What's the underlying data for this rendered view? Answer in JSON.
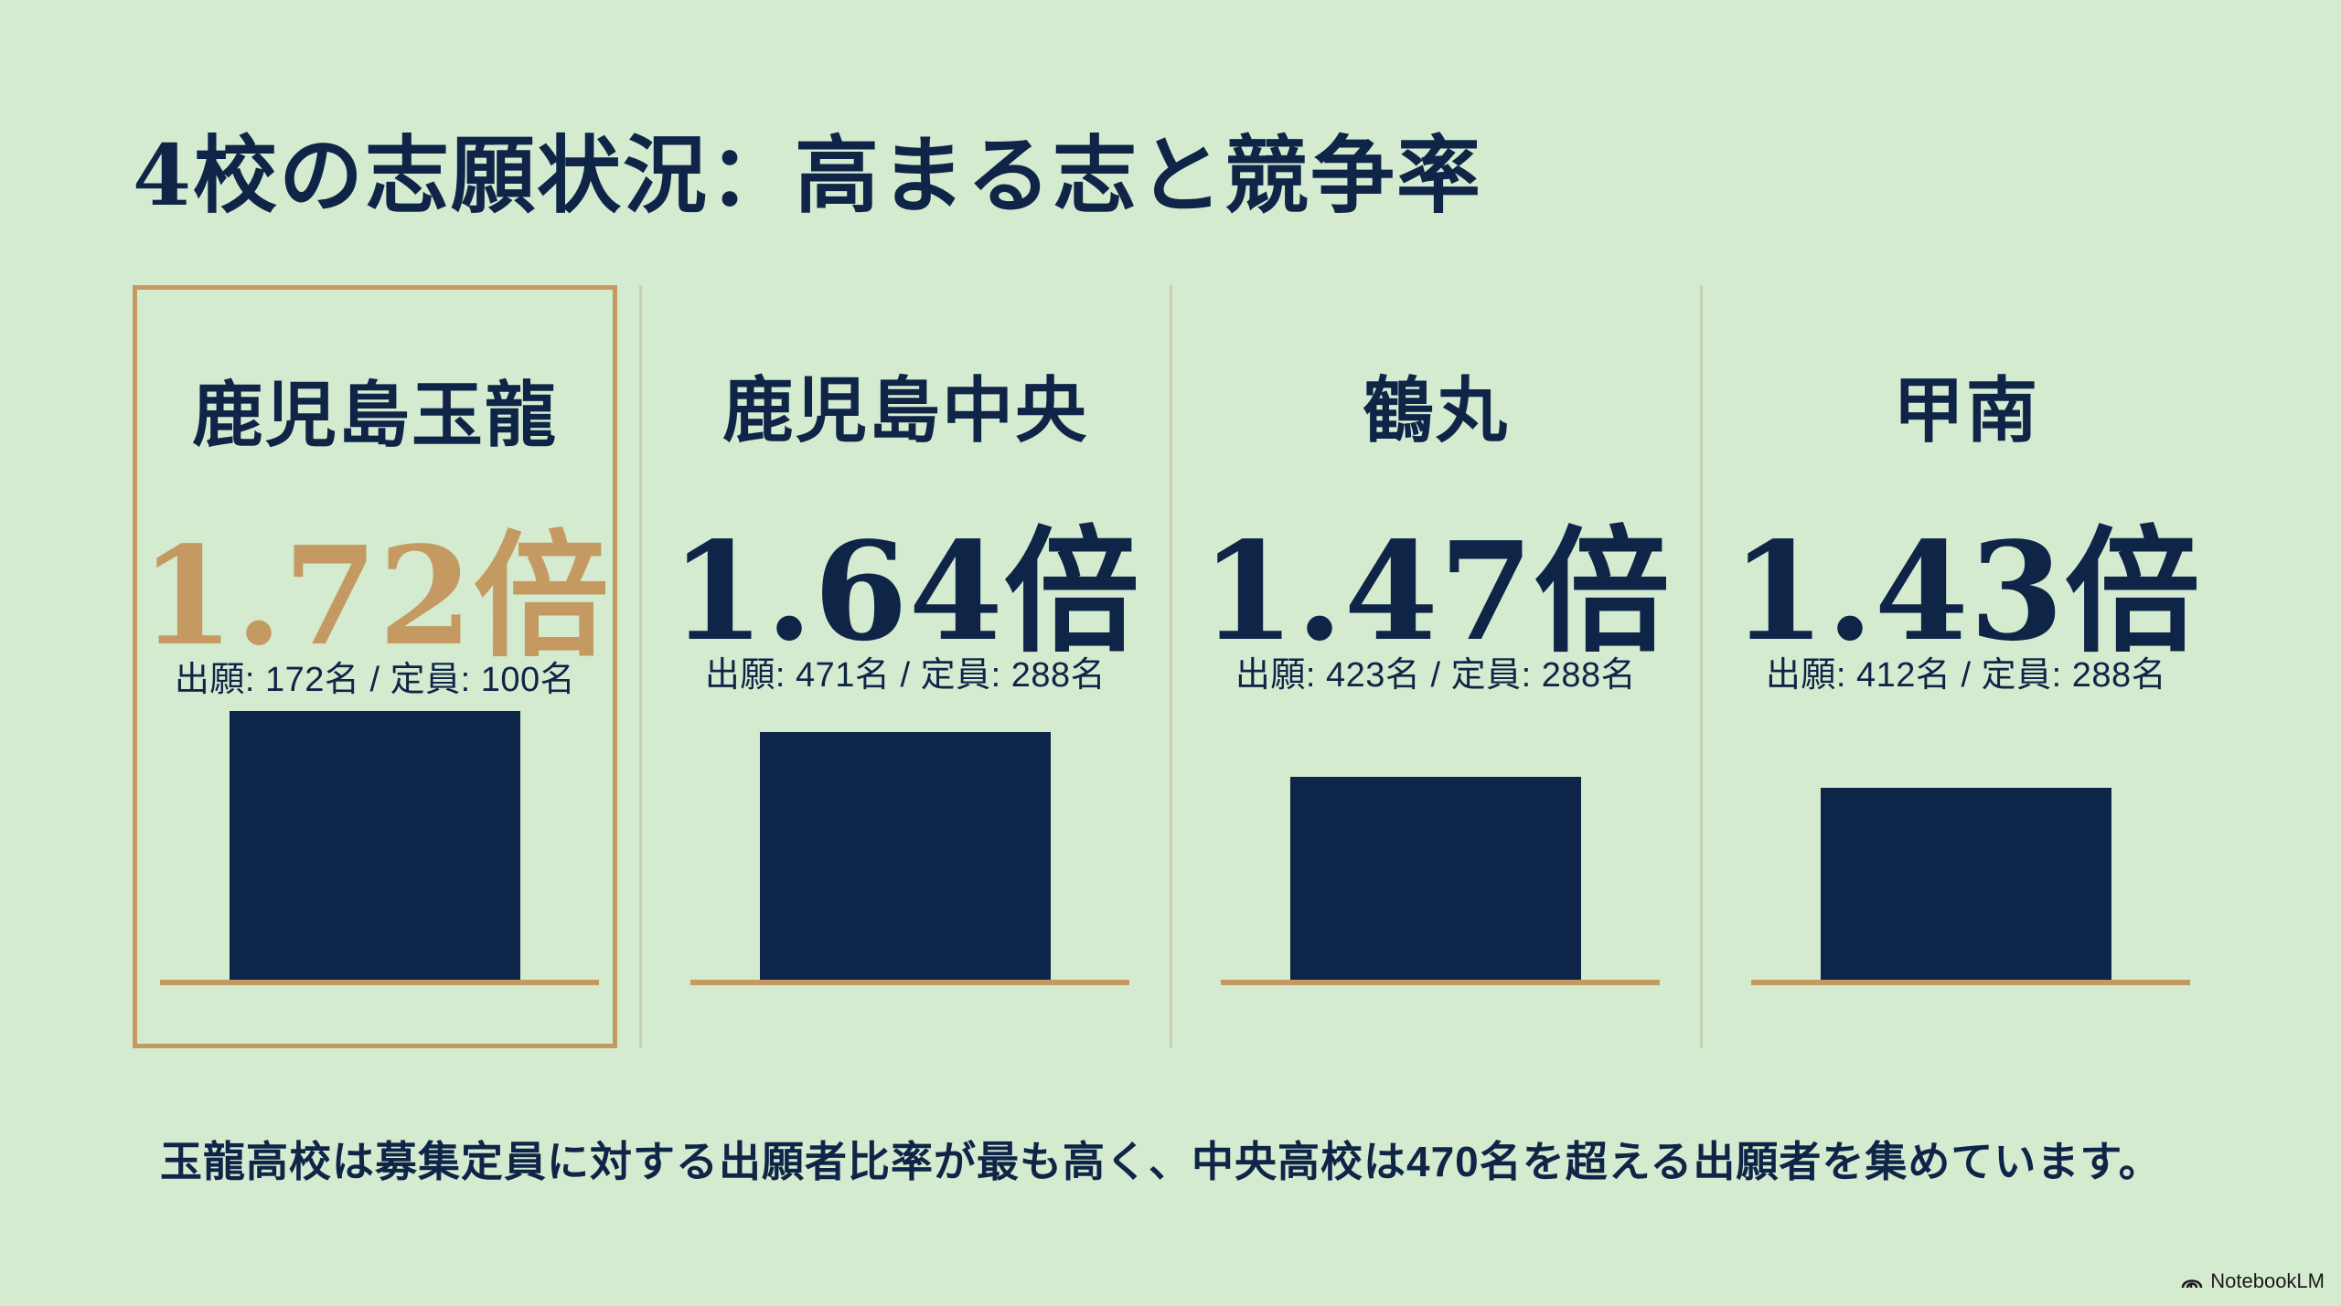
{
  "title": "4校の志願状況：高まる志と競争率",
  "caption": "玉龍高校は募集定員に対する出願者比率が最も高く、中央高校は470名を超える出願者を集めています。",
  "watermark": "NotebookLM",
  "colors": {
    "background": "#d5ebd0",
    "navy": "#0c2549",
    "gold": "#c49a62"
  },
  "icons": {
    "watermark": "notebooklm-logo-icon"
  },
  "chart_data": {
    "type": "bar",
    "categories": [
      "鹿児島玉龍",
      "鹿児島中央",
      "鶴丸",
      "甲南"
    ],
    "values": [
      1.72,
      1.64,
      1.47,
      1.43
    ],
    "ratio_labels": [
      "1.72倍",
      "1.64倍",
      "1.47倍",
      "1.43倍"
    ],
    "stats_labels": [
      "出願: 172名 / 定員: 100名",
      "出願: 471名 / 定員: 288名",
      "出願: 423名 / 定員: 288名",
      "出願: 412名 / 定員: 288名"
    ],
    "applicants": [
      172,
      471,
      423,
      412
    ],
    "capacity": [
      100,
      288,
      288,
      288
    ],
    "highlighted_index": 0,
    "ylim": [
      0,
      2
    ],
    "grid": false,
    "legend": "none"
  }
}
